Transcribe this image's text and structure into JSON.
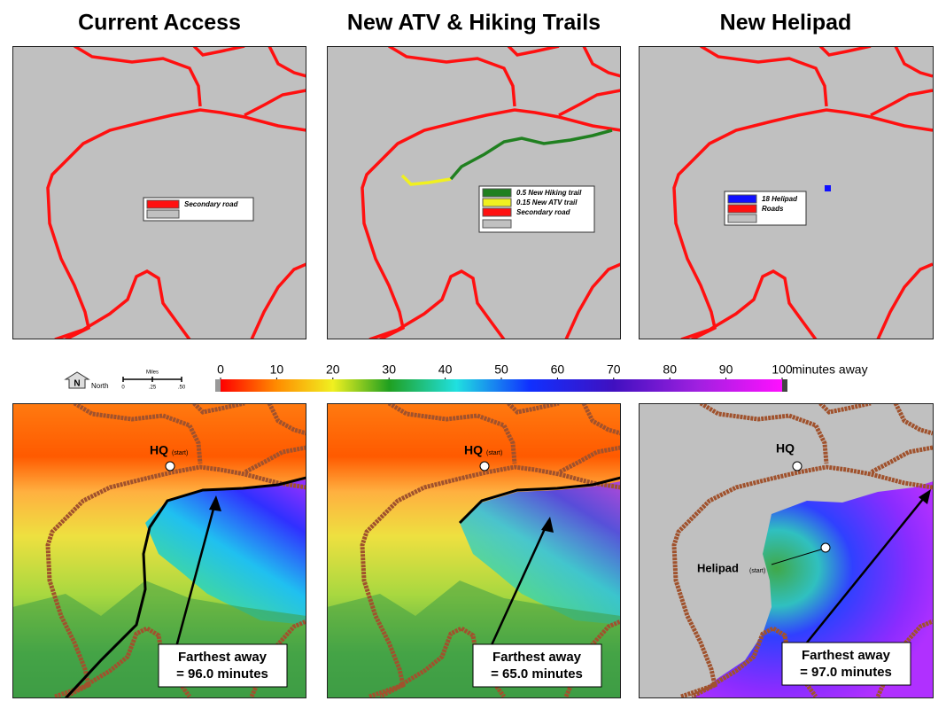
{
  "titles": [
    "Current  Access",
    "New ATV & Hiking Trails",
    "New Helipad"
  ],
  "legends": [
    [
      "Secondary road"
    ],
    [
      "0.5 New Hiking trail",
      "0.15 New ATV trail",
      "Secondary road"
    ],
    [
      "18 Helipad",
      "Roads"
    ]
  ],
  "scale": {
    "north": "N",
    "north_label": "North",
    "title": "Miles",
    "ticks": [
      "0",
      ".25",
      ".50"
    ]
  },
  "colorbar": {
    "ticks": [
      0,
      10,
      20,
      30,
      40,
      50,
      60,
      70,
      80,
      90,
      100
    ],
    "unit": "minutes away"
  },
  "maps": [
    {
      "hq": "HQ",
      "start": "(start)",
      "callout": [
        "Farthest away",
        "= 96.0 minutes"
      ]
    },
    {
      "hq": "HQ",
      "start": "(start)",
      "callout": [
        "Farthest away",
        "= 65.0 minutes"
      ]
    },
    {
      "hq": "HQ",
      "helipad": "Helipad",
      "start": "(start)",
      "callout": [
        "Farthest away",
        "= 97.0 minutes"
      ]
    }
  ]
}
